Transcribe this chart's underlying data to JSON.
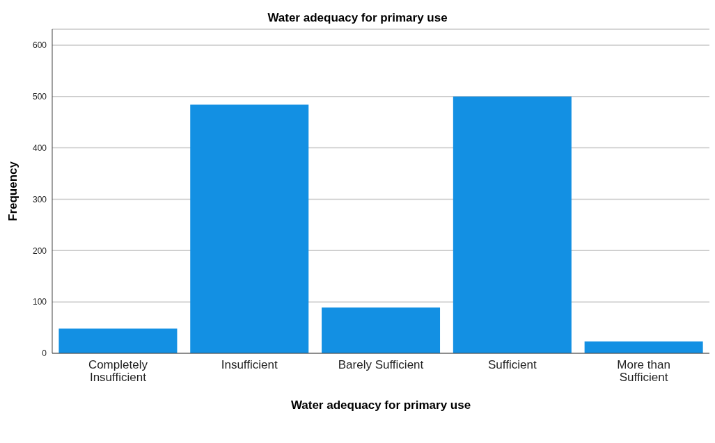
{
  "chart_data": {
    "type": "bar",
    "title": "Water adequacy for primary use",
    "xlabel": "Water adequacy for primary use",
    "ylabel": "Frequency",
    "categories": [
      "Completely Insufficient",
      "Insufficient",
      "Barely Sufficient",
      "Sufficient",
      "More than Sufficient"
    ],
    "values": [
      48,
      484,
      89,
      500,
      23
    ],
    "color": "#1390e3",
    "ylim": [
      0,
      631
    ],
    "yticks": [
      0,
      100,
      200,
      300,
      400,
      500,
      600
    ],
    "grid": "y"
  }
}
